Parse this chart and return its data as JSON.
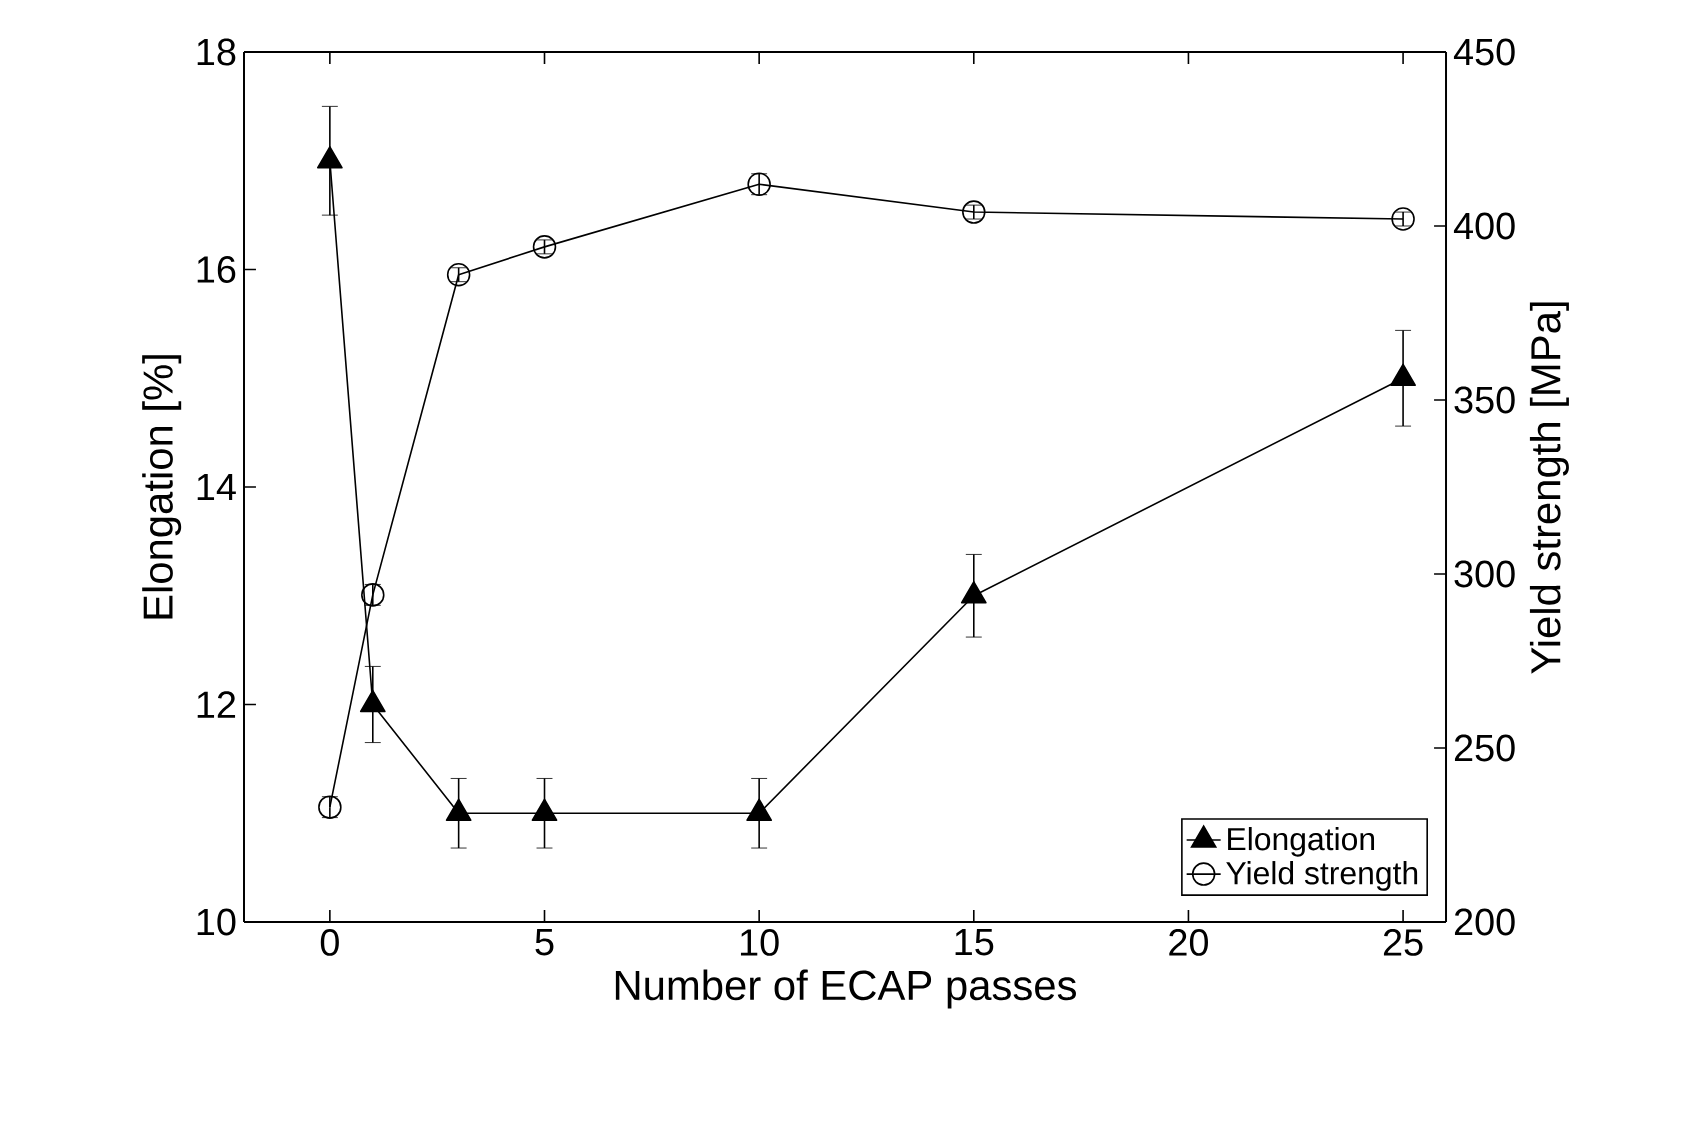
{
  "chart_data": {
    "type": "line",
    "xlabel": "Number of ECAP passes",
    "ylabel": "Elongation [%]",
    "y2label": "Yield strength [MPa]",
    "x": [
      0,
      1,
      3,
      5,
      10,
      15,
      25
    ],
    "xlim": [
      -2,
      26
    ],
    "xticks": [
      0,
      5,
      10,
      15,
      20,
      25
    ],
    "ylim": [
      10,
      18
    ],
    "yticks": [
      10,
      12,
      14,
      16,
      18
    ],
    "y2lim": [
      200,
      450
    ],
    "y2ticks": [
      200,
      250,
      300,
      350,
      400,
      450
    ],
    "legend": "bottom right",
    "grid": false,
    "line_style": "solid",
    "series": [
      {
        "name": "Elongation",
        "color": "#000000",
        "marker": "triangle",
        "values": [
          17,
          12,
          11,
          11,
          11,
          13,
          15
        ],
        "errors": [
          0.5,
          0.35,
          0.32,
          0.32,
          0.32,
          0.38,
          0.44
        ]
      },
      {
        "name": "Yield strength",
        "color": "#000000",
        "marker": "circle",
        "axis": "y2",
        "values": [
          233,
          294,
          386,
          394,
          412,
          404,
          402
        ],
        "errors": [
          3,
          3,
          2,
          2,
          3,
          2,
          2
        ]
      }
    ]
  }
}
